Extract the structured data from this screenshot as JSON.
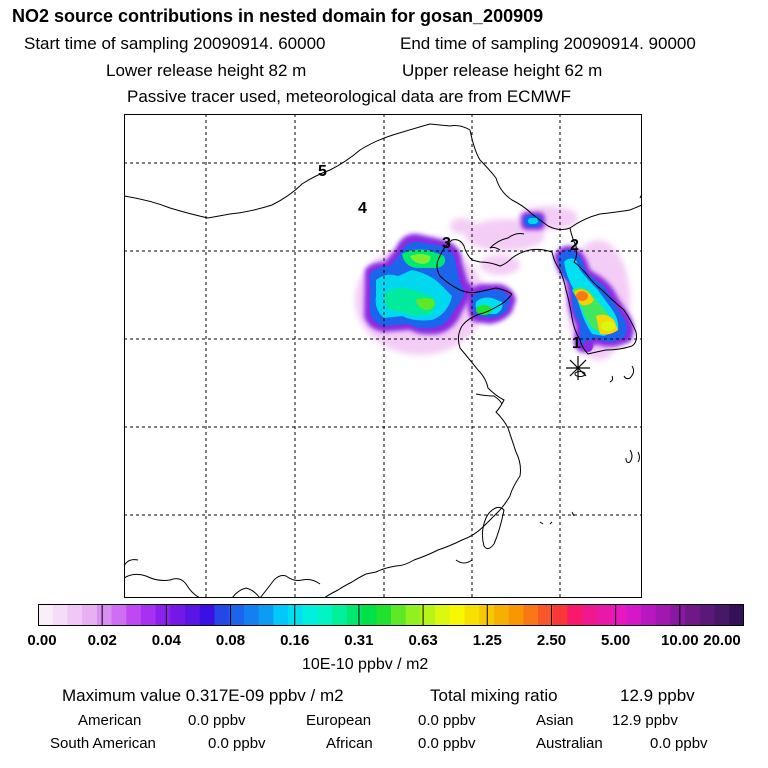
{
  "header": {
    "title": "NO2 source contributions in nested domain for gosan_200909",
    "start_label": "Start time of sampling 20090914. 60000",
    "end_label": "End time of sampling 20090914. 90000",
    "lower_label": "Lower release height   82 m",
    "upper_label": "Upper release height   62 m",
    "tracer_label": "Passive tracer used, meteorological data are from ECMWF"
  },
  "map": {
    "region_labels": [
      "1",
      "2",
      "3",
      "4",
      "5"
    ],
    "receptor_marker": "asterisk-icon"
  },
  "colorbar": {
    "ticks": [
      "0.00",
      "0.02",
      "0.04",
      "0.08",
      "0.16",
      "0.31",
      "0.63",
      "1.25",
      "2.50",
      "5.00",
      "10.00",
      "20.00"
    ],
    "unit": "10E-10 ppbv / m2",
    "colors": [
      "#fbeefb",
      "#f5dcf8",
      "#efc8f6",
      "#e8b0f3",
      "#d98ef2",
      "#cf6ef2",
      "#c048f2",
      "#a830f0",
      "#8c20ec",
      "#7418e8",
      "#5a14e6",
      "#3c10e4",
      "#2448e8",
      "#1c64ec",
      "#1480f0",
      "#0c9cf4",
      "#00c8f8",
      "#00e0f0",
      "#00f0e0",
      "#00f4c4",
      "#00f09c",
      "#00e870",
      "#00e048",
      "#20e030",
      "#60e828",
      "#90f020",
      "#b8f418",
      "#dcf810",
      "#f8f800",
      "#f8e000",
      "#f8c800",
      "#f8b000",
      "#f89800",
      "#f87818",
      "#f85828",
      "#f83838",
      "#f8186c",
      "#f01890",
      "#e818a8",
      "#e818c0",
      "#d418c8",
      "#b818c0",
      "#a018b0",
      "#8818a0",
      "#701888",
      "#5c1878",
      "#481868",
      "#341058"
    ]
  },
  "stats": {
    "max_label": "Maximum value  0.317E-09 ppbv / m2",
    "total_label": "Total mixing ratio",
    "total_value": "12.9 ppbv",
    "american_label": "American",
    "american_value": "0.0 ppbv",
    "european_label": "European",
    "european_value": "0.0 ppbv",
    "asian_label": "Asian",
    "asian_value": "12.9 ppbv",
    "south_american_label": "South American",
    "south_american_value": "0.0 ppbv",
    "african_label": "African",
    "african_value": "0.0 ppbv",
    "australian_label": "Australian",
    "australian_value": "0.0 ppbv"
  }
}
